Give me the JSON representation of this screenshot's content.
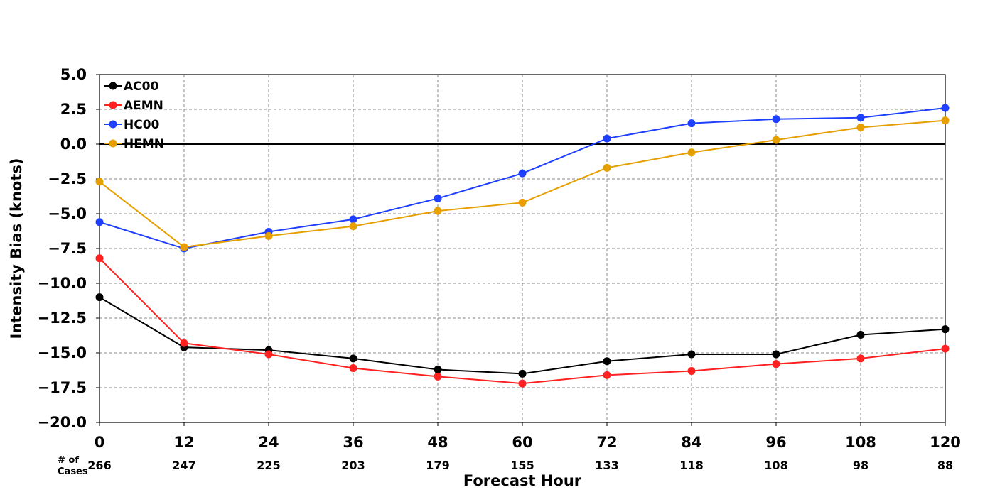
{
  "chart_data": {
    "type": "line",
    "title": "",
    "xlabel": "Forecast Hour",
    "ylabel": "Intensity Bias (knots)",
    "ylim": [
      -20.0,
      5.0
    ],
    "xlim": [
      0,
      120
    ],
    "y_ticks": [
      5.0,
      2.5,
      0.0,
      -2.5,
      -5.0,
      -7.5,
      -10.0,
      -12.5,
      -15.0,
      -17.5,
      -20.0
    ],
    "y_tick_labels": [
      "5.0",
      "2.5",
      "0.0",
      "−2.5",
      "−5.0",
      "−7.5",
      "−10.0",
      "−12.5",
      "−15.0",
      "−17.5",
      "−20.0"
    ],
    "x": [
      0,
      12,
      24,
      36,
      48,
      60,
      72,
      84,
      96,
      108,
      120
    ],
    "x_tick_labels": [
      "0",
      "12",
      "24",
      "36",
      "48",
      "60",
      "72",
      "84",
      "96",
      "108",
      "120"
    ],
    "cases_label_line1": "# of",
    "cases_label_line2": "Cases",
    "cases": [
      "266",
      "247",
      "225",
      "203",
      "179",
      "155",
      "133",
      "118",
      "108",
      "98",
      "88"
    ],
    "grid": true,
    "grid_style": "dashed",
    "zero_line": true,
    "legend_position": "top-left",
    "series": [
      {
        "name": "AC00",
        "color": "#000000",
        "values": [
          -11.0,
          -14.6,
          -14.8,
          -15.4,
          -16.2,
          -16.5,
          -15.6,
          -15.1,
          -15.1,
          -13.7,
          -13.3
        ]
      },
      {
        "name": "AEMN",
        "color": "#ff2020",
        "values": [
          -8.2,
          -14.3,
          -15.1,
          -16.1,
          -16.7,
          -17.2,
          -16.6,
          -16.3,
          -15.8,
          -15.4,
          -14.7
        ]
      },
      {
        "name": "HC00",
        "color": "#1f3fff",
        "values": [
          -5.6,
          -7.5,
          -6.3,
          -5.4,
          -3.9,
          -2.1,
          0.4,
          1.5,
          1.8,
          1.9,
          2.6
        ]
      },
      {
        "name": "HEMN",
        "color": "#e69f00",
        "values": [
          -2.7,
          -7.4,
          -6.6,
          -5.9,
          -4.8,
          -4.2,
          -1.7,
          -0.6,
          0.3,
          1.2,
          1.7
        ]
      }
    ]
  }
}
